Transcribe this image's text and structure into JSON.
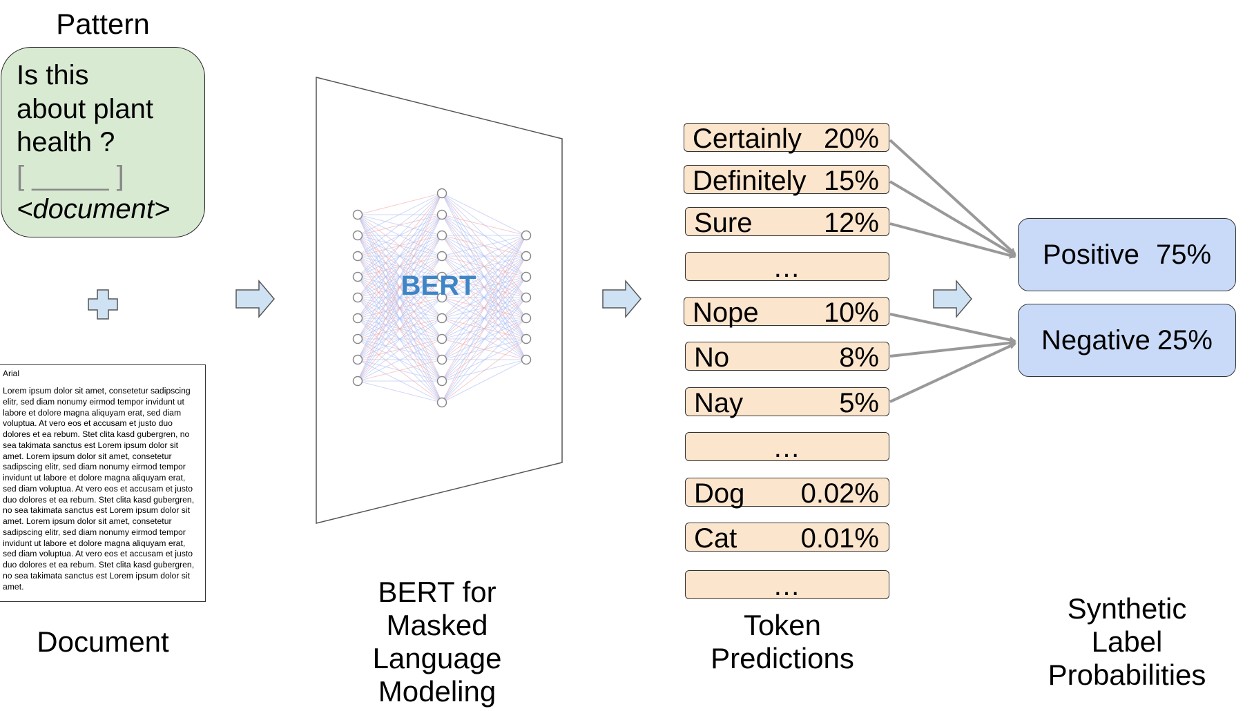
{
  "pattern": {
    "title": "Pattern",
    "lines": [
      "Is this",
      "about plant",
      "health ?"
    ],
    "blank": "[ _____ ]",
    "placeholder": "<document>"
  },
  "document": {
    "font_name": "Arial",
    "body": "Lorem ipsum dolor sit amet, consetetur sadipscing elitr, sed diam nonumy eirmod tempor invidunt ut labore et dolore magna aliquyam erat, sed diam voluptua. At vero eos et accusam et justo duo dolores et ea rebum. Stet clita kasd gubergren, no sea takimata sanctus est Lorem ipsum dolor sit amet. Lorem ipsum dolor sit amet, consetetur sadipscing elitr, sed diam nonumy eirmod tempor invidunt ut labore et dolore magna aliquyam erat, sed diam voluptua. At vero eos et accusam et justo duo dolores et ea rebum. Stet clita kasd gubergren, no sea takimata sanctus est Lorem ipsum dolor sit amet. Lorem ipsum dolor sit amet, consetetur sadipscing elitr, sed diam nonumy eirmod tempor invidunt ut labore et dolore magna aliquyam erat, sed diam voluptua. At vero eos et accusam et justo duo dolores et ea rebum. Stet clita kasd gubergren, no sea takimata sanctus est Lorem ipsum dolor sit amet.",
    "caption": "Document"
  },
  "bert": {
    "label": "BERT",
    "caption_lines": [
      "BERT for",
      "Masked",
      "Language",
      "Modeling"
    ]
  },
  "tokens": {
    "caption_lines": [
      "Token",
      "Predictions"
    ],
    "items": [
      {
        "token": "Certainly",
        "prob": "20%"
      },
      {
        "token": "Definitely",
        "prob": "15%"
      },
      {
        "token": "Sure",
        "prob": "12%"
      },
      {
        "token": "",
        "prob": "",
        "ellipsis": "…"
      },
      {
        "token": "Nope",
        "prob": "10%"
      },
      {
        "token": "No",
        "prob": "8%"
      },
      {
        "token": "Nay",
        "prob": "5%"
      },
      {
        "token": "",
        "prob": "",
        "ellipsis": "…"
      },
      {
        "token": "Dog",
        "prob": "0.02%"
      },
      {
        "token": "Cat",
        "prob": "0.01%"
      },
      {
        "token": "",
        "prob": "",
        "ellipsis": "…"
      }
    ]
  },
  "labels": {
    "caption_lines": [
      "Synthetic",
      "Label",
      "Probabilities"
    ],
    "positive": {
      "name": "Positive",
      "prob": "75%"
    },
    "negative": {
      "name": "Negative",
      "prob": "25%"
    }
  },
  "colors": {
    "pattern_fill": "#d9ead3",
    "token_fill": "#fce5cd",
    "label_fill": "#c9daf8",
    "arrow_fill": "#cfe2f3",
    "bert_text": "#3d85c6",
    "connector": "#999999"
  }
}
